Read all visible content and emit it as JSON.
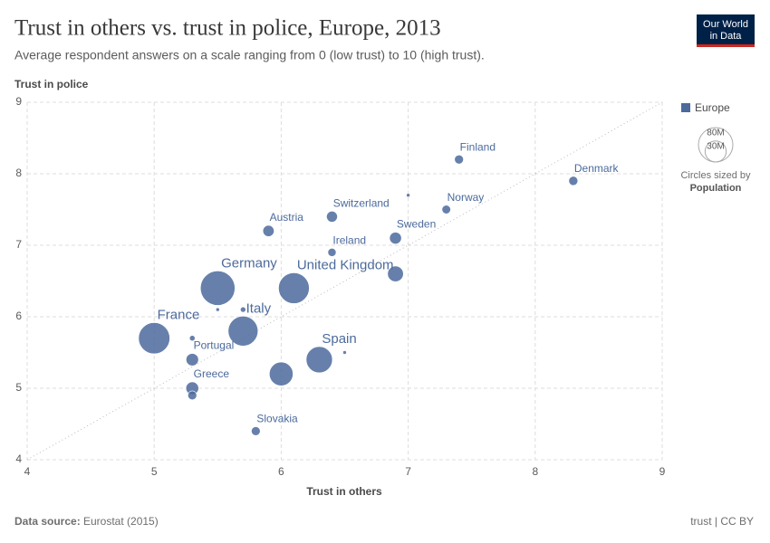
{
  "header": {
    "title": "Trust in others vs. trust in police, Europe, 2013",
    "subtitle": "Average respondent answers on a scale ranging from 0 (low trust) to 10 (high trust).",
    "logo": [
      "Our World",
      "in Data"
    ]
  },
  "chart_data": {
    "type": "scatter",
    "x_label": "Trust in others",
    "y_label": "Trust in police",
    "xlim": [
      4,
      9
    ],
    "xticks": [
      4,
      5,
      6,
      7,
      8,
      9
    ],
    "ylim": [
      4,
      9
    ],
    "yticks": [
      4,
      5,
      6,
      7,
      8,
      9
    ],
    "grid": true,
    "series": [
      {
        "name": "Europe",
        "color": "#4c6a9c",
        "labels": [
          "Finland",
          "Denmark",
          null,
          "Norway",
          "Switzerland",
          "Austria",
          "Sweden",
          "Ireland",
          "United Kingdom",
          null,
          "Germany",
          null,
          null,
          "Italy",
          "France",
          null,
          "Portugal",
          "Spain",
          null,
          null,
          "Greece",
          null,
          "Slovakia"
        ],
        "x": [
          7.4,
          8.3,
          7.0,
          7.3,
          6.4,
          5.9,
          6.9,
          6.4,
          6.1,
          6.9,
          5.5,
          5.5,
          5.7,
          5.7,
          5.0,
          5.3,
          5.3,
          6.3,
          6.5,
          6.0,
          5.3,
          5.3,
          5.8
        ],
        "values": [
          8.2,
          7.9,
          7.7,
          7.5,
          7.4,
          7.2,
          7.1,
          6.9,
          6.4,
          6.6,
          6.4,
          6.1,
          6.1,
          5.8,
          5.7,
          5.7,
          5.4,
          5.4,
          5.5,
          5.2,
          5.0,
          4.9,
          4.4
        ],
        "sizes": [
          5400000,
          5600000,
          540000,
          5100000,
          8100000,
          8500000,
          9600000,
          4600000,
          64000000,
          16800000,
          80600000,
          420000,
          2000000,
          60000000,
          66000000,
          2100000,
          10500000,
          46600000,
          860000,
          38000000,
          11000000,
          5400000,
          5400000
        ]
      }
    ],
    "size_legend": {
      "title": "Circles sized by",
      "variable": "Population",
      "values": [
        {
          "value": 80000000,
          "label": "80M"
        },
        {
          "value": 30000000,
          "label": "30M"
        }
      ]
    }
  },
  "footer": {
    "source_label": "Data source:",
    "source": "Eurostat (2015)",
    "license": "trust | CC BY"
  }
}
